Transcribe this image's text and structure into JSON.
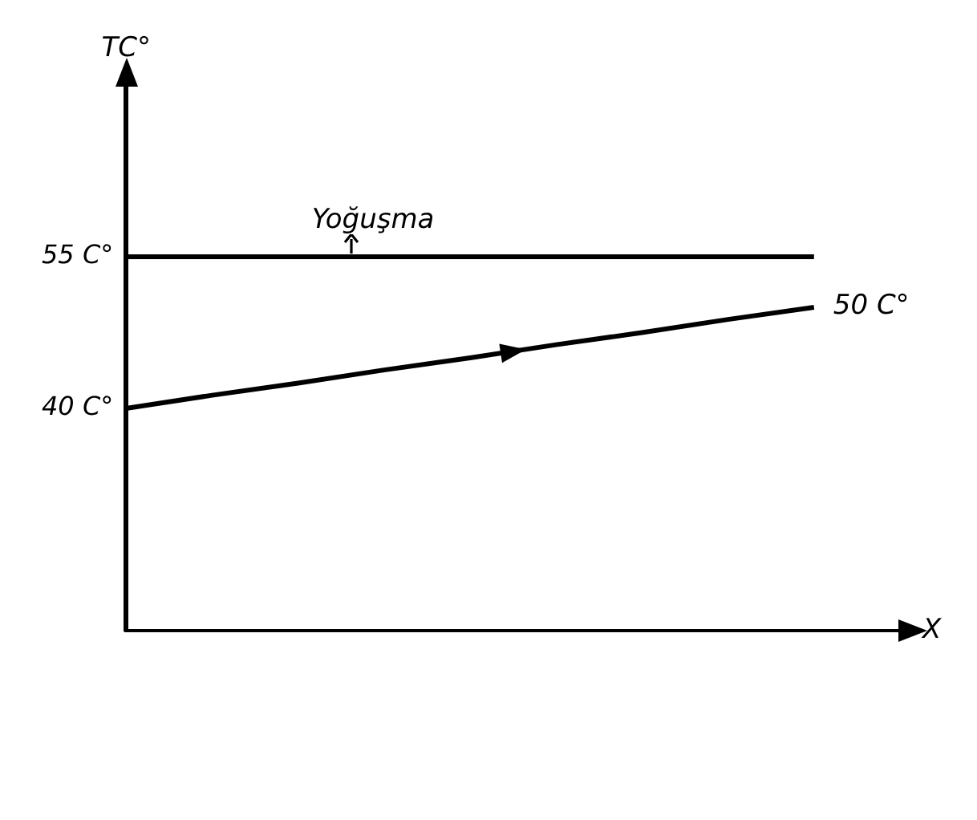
{
  "chart_data": {
    "type": "line",
    "xlabel": "X",
    "ylabel": "TC°",
    "categories": [
      null,
      null,
      null,
      null,
      null,
      null,
      null,
      null,
      null,
      null
    ],
    "series": [
      {
        "color": "#000000",
        "values": [
          55,
          55,
          55,
          55,
          55,
          55,
          55,
          55,
          55,
          null
        ]
      },
      {
        "color": "#000000",
        "values": [
          40,
          41.3,
          42.5,
          43.8,
          45,
          46.3,
          47.5,
          48.8,
          50,
          null
        ]
      }
    ],
    "ylim": [
      18,
      72
    ],
    "yticks": [
      {
        "value": 40,
        "label": "40 C°"
      },
      {
        "value": 55,
        "label": "55 C°"
      }
    ],
    "tick_labels": "y",
    "grid": false,
    "legend": false,
    "marker": "none",
    "line_style": "solid",
    "annotations": [
      "Yoğuşma",
      "50 C°"
    ]
  }
}
